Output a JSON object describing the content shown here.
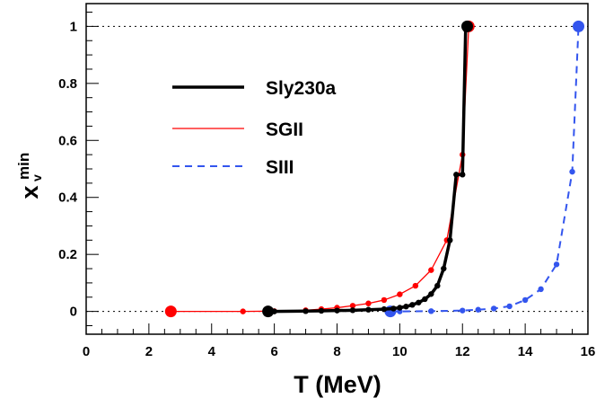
{
  "chart_data": {
    "type": "line",
    "title": "",
    "xlabel": "T (MeV)",
    "ylabel": {
      "base": "x",
      "sub": "v",
      "sup": "min"
    },
    "xlim": [
      0,
      16
    ],
    "ylim": [
      -0.08,
      1.08
    ],
    "x_ticks": [
      0,
      2,
      4,
      6,
      8,
      10,
      12,
      14,
      16
    ],
    "y_ticks": [
      0,
      0.2,
      0.4,
      0.6,
      0.8,
      1
    ],
    "x_tick_labels": [
      "0",
      "2",
      "4",
      "6",
      "8",
      "10",
      "12",
      "14",
      "16"
    ],
    "y_tick_labels": [
      "0",
      "0.2",
      "0.4",
      "0.6",
      "0.8",
      "1"
    ],
    "reference_lines": [
      0,
      1
    ],
    "legend_position": "upper-left",
    "series": [
      {
        "name": "Sly230a",
        "color": "#000000",
        "style": "solid-thick",
        "x": [
          5.8,
          6.0,
          7.0,
          7.5,
          8.0,
          8.5,
          9.0,
          9.5,
          9.8,
          10.0,
          10.2,
          10.4,
          10.6,
          10.8,
          11.0,
          11.2,
          11.4,
          11.6,
          11.8,
          12.0,
          12.1,
          12.15
        ],
        "y": [
          0,
          0,
          0.001,
          0.002,
          0.003,
          0.004,
          0.006,
          0.008,
          0.01,
          0.013,
          0.017,
          0.023,
          0.031,
          0.043,
          0.061,
          0.09,
          0.15,
          0.25,
          0.48,
          0.48,
          0.99,
          1.0
        ],
        "endpoints": [
          [
            5.8,
            0
          ],
          [
            12.15,
            1.0
          ]
        ]
      },
      {
        "name": "SGII",
        "color": "#ff0000",
        "style": "solid-thin",
        "x": [
          2.7,
          5.0,
          6.0,
          7.0,
          7.5,
          8.0,
          8.5,
          9.0,
          9.5,
          10.0,
          10.5,
          11.0,
          11.5,
          12.0,
          12.2
        ],
        "y": [
          0,
          0,
          0.001,
          0.004,
          0.008,
          0.013,
          0.02,
          0.028,
          0.04,
          0.06,
          0.09,
          0.145,
          0.25,
          0.55,
          1.0
        ],
        "endpoints": [
          [
            2.7,
            0
          ],
          [
            12.2,
            1.0
          ]
        ]
      },
      {
        "name": "SIII",
        "color": "#3355ee",
        "style": "dashed",
        "x": [
          9.7,
          10.0,
          11.0,
          12.0,
          12.5,
          13.0,
          13.5,
          14.0,
          14.5,
          15.0,
          15.5,
          15.7
        ],
        "y": [
          0,
          0,
          0.001,
          0.003,
          0.006,
          0.01,
          0.018,
          0.04,
          0.078,
          0.165,
          0.49,
          1.0
        ],
        "endpoints": [
          [
            9.7,
            0
          ],
          [
            15.7,
            1.0
          ]
        ]
      }
    ]
  }
}
